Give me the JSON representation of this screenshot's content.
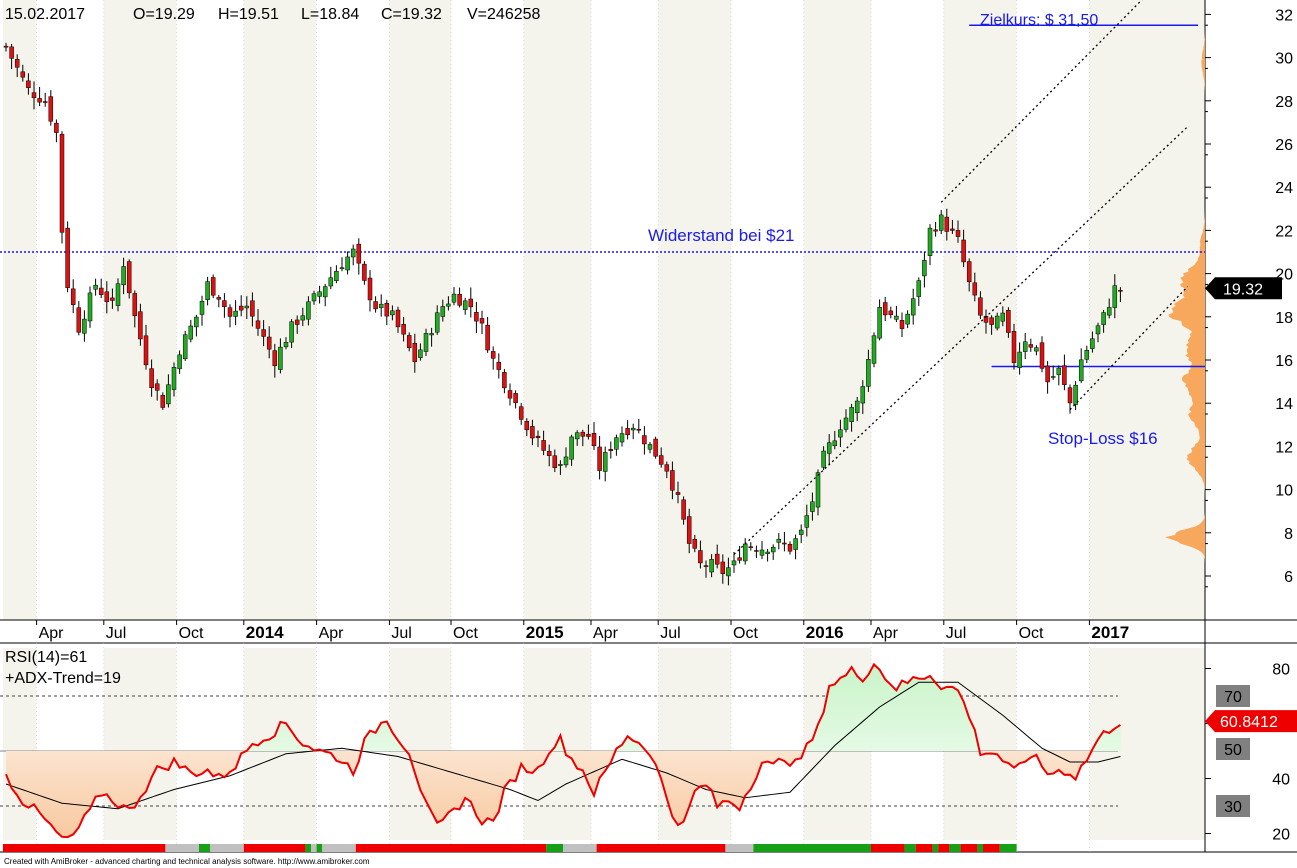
{
  "header": {
    "date": "15.02.2017",
    "open": "O=19.29",
    "high": "H=19.51",
    "low": "L=18.84",
    "close": "C=19.32",
    "volume": "V=246258"
  },
  "annotations": {
    "target": "Zielkurs: $ 31,50",
    "resistance": "Widerstand bei $21",
    "stop_loss": "Stop-Loss $16"
  },
  "price_tag": "19.32",
  "rsi_tag": "60.8412",
  "indicator_labels": {
    "rsi": "RSI(14)=61",
    "adx": "+ADX-Trend=19"
  },
  "footer": "Created with AmiBroker - advanced charting and technical analysis software. http://www.amibroker.com",
  "colors": {
    "up_candle": "#22aa22",
    "down_candle": "#dd1111",
    "annotation": "#1a1aee",
    "volume_profile": "#f7a85c",
    "rsi_line": "#ee0000",
    "rsi_signal": "#000000",
    "fill_overbought": "#c9f4c9",
    "fill_oversold": "#f8c9a0",
    "price_tag_bg": "#000000",
    "rsi_tag_bg": "#ee0000",
    "level_tag_bg": "#808080"
  },
  "chart_data": [
    {
      "type": "candlestick",
      "x_ticks": [
        {
          "label": "Apr",
          "bold": false
        },
        {
          "label": "Jul",
          "bold": false
        },
        {
          "label": "Oct",
          "bold": false
        },
        {
          "label": "2014",
          "bold": true
        },
        {
          "label": "Apr",
          "bold": false
        },
        {
          "label": "Jul",
          "bold": false
        },
        {
          "label": "Oct",
          "bold": false
        },
        {
          "label": "2015",
          "bold": true
        },
        {
          "label": "Apr",
          "bold": false
        },
        {
          "label": "Jul",
          "bold": false
        },
        {
          "label": "Oct",
          "bold": false
        },
        {
          "label": "2016",
          "bold": true
        },
        {
          "label": "Apr",
          "bold": false
        },
        {
          "label": "Jul",
          "bold": false
        },
        {
          "label": "Oct",
          "bold": false
        },
        {
          "label": "2017",
          "bold": true
        }
      ],
      "y_ticks": [
        6,
        8,
        10,
        12,
        14,
        16,
        18,
        20,
        22,
        24,
        26,
        28,
        30,
        32
      ],
      "ylim": [
        5,
        33
      ],
      "close_anchors": [
        [
          0,
          30.5
        ],
        [
          4,
          28.5
        ],
        [
          7,
          28.0
        ],
        [
          9,
          26.5
        ],
        [
          10,
          22.0
        ],
        [
          11,
          19.5
        ],
        [
          13,
          17.5
        ],
        [
          16,
          19.5
        ],
        [
          19,
          18.5
        ],
        [
          21,
          20.5
        ],
        [
          23,
          18.0
        ],
        [
          25,
          16.0
        ],
        [
          26,
          15.0
        ],
        [
          28,
          14.0
        ],
        [
          31,
          16.5
        ],
        [
          34,
          18.0
        ],
        [
          36,
          19.5
        ],
        [
          38,
          19.0
        ],
        [
          40,
          18.0
        ],
        [
          43,
          18.5
        ],
        [
          46,
          17.0
        ],
        [
          48,
          16.0
        ],
        [
          51,
          17.5
        ],
        [
          54,
          18.5
        ],
        [
          57,
          19.5
        ],
        [
          60,
          20.5
        ],
        [
          62,
          21.0
        ],
        [
          64,
          19.5
        ],
        [
          66,
          18.5
        ],
        [
          69,
          18.0
        ],
        [
          71,
          17.0
        ],
        [
          73,
          16.0
        ],
        [
          75,
          17.0
        ],
        [
          78,
          18.5
        ],
        [
          80,
          19.0
        ],
        [
          83,
          18.5
        ],
        [
          85,
          17.5
        ],
        [
          87,
          16.0
        ],
        [
          89,
          15.0
        ],
        [
          91,
          14.0
        ],
        [
          94,
          12.5
        ],
        [
          97,
          11.5
        ],
        [
          99,
          11.0
        ],
        [
          101,
          12.5
        ],
        [
          104,
          12.5
        ],
        [
          106,
          11.0
        ],
        [
          109,
          12.5
        ],
        [
          112,
          13.0
        ],
        [
          115,
          12.0
        ],
        [
          118,
          11.0
        ],
        [
          120,
          9.5
        ],
        [
          122,
          7.5
        ],
        [
          124,
          6.5
        ],
        [
          126,
          6.5
        ],
        [
          128,
          6.2
        ],
        [
          130,
          6.5
        ],
        [
          132,
          7.5
        ],
        [
          135,
          7.3
        ],
        [
          138,
          7.5
        ],
        [
          140,
          7.3
        ],
        [
          142,
          8.0
        ],
        [
          144,
          9.5
        ],
        [
          146,
          11.5
        ],
        [
          149,
          13.0
        ],
        [
          152,
          14.0
        ],
        [
          154,
          16.0
        ],
        [
          156,
          18.5
        ],
        [
          158,
          18.0
        ],
        [
          160,
          17.5
        ],
        [
          163,
          19.5
        ],
        [
          165,
          22.0
        ],
        [
          167,
          22.5
        ],
        [
          170,
          21.5
        ],
        [
          172,
          19.5
        ],
        [
          174,
          18.0
        ],
        [
          176,
          17.5
        ],
        [
          178,
          18.0
        ],
        [
          180,
          16.0
        ],
        [
          182,
          17.0
        ],
        [
          184,
          16.5
        ],
        [
          186,
          15.0
        ],
        [
          188,
          15.5
        ],
        [
          190,
          14.0
        ],
        [
          192,
          16.0
        ],
        [
          194,
          17.0
        ],
        [
          196,
          18.0
        ],
        [
          198,
          19.3
        ]
      ],
      "levels": {
        "resistance": 21.0,
        "stop_loss": 15.7,
        "target": 31.5,
        "last_close": 19.32
      },
      "trendlines": [
        {
          "from": [
            130,
            7.0
          ],
          "to": [
            211,
            26.8
          ]
        },
        {
          "from": [
            167,
            23.3
          ],
          "to": [
            206,
            33.5
          ]
        },
        {
          "from": [
            190,
            13.7
          ],
          "to": [
            211,
            19.4
          ]
        }
      ],
      "volume_profile_peaks": [
        {
          "price": 7.8,
          "weight": 0.85
        },
        {
          "price": 11.5,
          "weight": 0.4
        },
        {
          "price": 13.5,
          "weight": 0.35
        },
        {
          "price": 15.0,
          "weight": 0.5
        },
        {
          "price": 16.5,
          "weight": 0.45
        },
        {
          "price": 18.2,
          "weight": 0.82
        },
        {
          "price": 19.7,
          "weight": 0.55
        },
        {
          "price": 21.3,
          "weight": 0.12
        },
        {
          "price": 29.8,
          "weight": 0.08
        }
      ]
    },
    {
      "type": "line",
      "name": "RSI(14)",
      "ylim": [
        15,
        88
      ],
      "y_ticks": [
        20,
        40,
        60,
        80
      ],
      "levels": [
        30,
        50,
        70
      ],
      "level_tags": [
        "70",
        "50",
        "30"
      ],
      "last_value": 60.8412,
      "rsi_anchors": [
        [
          0,
          41
        ],
        [
          3,
          32
        ],
        [
          6,
          27
        ],
        [
          9,
          20
        ],
        [
          11,
          17
        ],
        [
          13,
          22
        ],
        [
          15,
          28
        ],
        [
          17,
          35
        ],
        [
          20,
          31
        ],
        [
          22,
          28
        ],
        [
          24,
          34
        ],
        [
          27,
          43
        ],
        [
          30,
          46
        ],
        [
          33,
          42
        ],
        [
          36,
          43
        ],
        [
          38,
          40
        ],
        [
          41,
          45
        ],
        [
          44,
          53
        ],
        [
          47,
          56
        ],
        [
          50,
          60
        ],
        [
          53,
          53
        ],
        [
          56,
          50
        ],
        [
          59,
          48
        ],
        [
          62,
          43
        ],
        [
          64,
          53
        ],
        [
          66,
          58
        ],
        [
          68,
          62
        ],
        [
          70,
          55
        ],
        [
          72,
          50
        ],
        [
          75,
          30
        ],
        [
          77,
          22
        ],
        [
          79,
          26
        ],
        [
          82,
          33
        ],
        [
          85,
          25
        ],
        [
          87,
          24
        ],
        [
          89,
          35
        ],
        [
          92,
          44
        ],
        [
          95,
          43
        ],
        [
          97,
          51
        ],
        [
          99,
          54
        ],
        [
          101,
          47
        ],
        [
          103,
          43
        ],
        [
          105,
          35
        ],
        [
          107,
          42
        ],
        [
          109,
          50
        ],
        [
          111,
          56
        ],
        [
          113,
          53
        ],
        [
          115,
          50
        ],
        [
          117,
          39
        ],
        [
          119,
          27
        ],
        [
          121,
          23
        ],
        [
          123,
          35
        ],
        [
          125,
          38
        ],
        [
          127,
          30
        ],
        [
          129,
          32
        ],
        [
          131,
          30
        ],
        [
          133,
          38
        ],
        [
          135,
          46
        ],
        [
          137,
          44
        ],
        [
          139,
          48
        ],
        [
          141,
          45
        ],
        [
          143,
          51
        ],
        [
          145,
          58
        ],
        [
          147,
          74
        ],
        [
          149,
          76
        ],
        [
          151,
          79
        ],
        [
          153,
          77
        ],
        [
          155,
          82
        ],
        [
          157,
          77
        ],
        [
          159,
          73
        ],
        [
          162,
          76
        ],
        [
          165,
          78
        ],
        [
          167,
          74
        ],
        [
          170,
          72
        ],
        [
          172,
          63
        ],
        [
          174,
          50
        ],
        [
          177,
          49
        ],
        [
          180,
          42
        ],
        [
          183,
          49
        ],
        [
          186,
          42
        ],
        [
          189,
          43
        ],
        [
          191,
          41
        ],
        [
          193,
          47
        ],
        [
          195,
          54
        ],
        [
          197,
          58
        ],
        [
          199,
          61
        ]
      ],
      "signal_anchors": [
        [
          0,
          38
        ],
        [
          10,
          31
        ],
        [
          20,
          29
        ],
        [
          30,
          36
        ],
        [
          40,
          41
        ],
        [
          50,
          49
        ],
        [
          60,
          51
        ],
        [
          70,
          48
        ],
        [
          80,
          42
        ],
        [
          90,
          36
        ],
        [
          95,
          32
        ],
        [
          100,
          38
        ],
        [
          110,
          47
        ],
        [
          118,
          42
        ],
        [
          125,
          36
        ],
        [
          132,
          33
        ],
        [
          140,
          35
        ],
        [
          148,
          52
        ],
        [
          156,
          66
        ],
        [
          163,
          75
        ],
        [
          170,
          75
        ],
        [
          178,
          63
        ],
        [
          185,
          51
        ],
        [
          190,
          46
        ],
        [
          195,
          46
        ],
        [
          199,
          48
        ]
      ],
      "status_bar": [
        [
          "red",
          29
        ],
        [
          "gray",
          6
        ],
        [
          "green",
          2
        ],
        [
          "gray",
          6
        ],
        [
          "red",
          11
        ],
        [
          "green",
          1
        ],
        [
          "gray",
          1
        ],
        [
          "green",
          1
        ],
        [
          "gray",
          6
        ],
        [
          "red",
          34
        ],
        [
          "green",
          3
        ],
        [
          "gray",
          6
        ],
        [
          "red",
          23
        ],
        [
          "gray",
          5
        ],
        [
          "green",
          21
        ],
        [
          "red",
          6
        ],
        [
          "green",
          2
        ],
        [
          "red",
          3
        ],
        [
          "green",
          1
        ],
        [
          "red",
          2
        ],
        [
          "green",
          2
        ],
        [
          "red",
          3
        ],
        [
          "green",
          1
        ],
        [
          "red",
          3
        ],
        [
          "green",
          3
        ]
      ]
    }
  ]
}
